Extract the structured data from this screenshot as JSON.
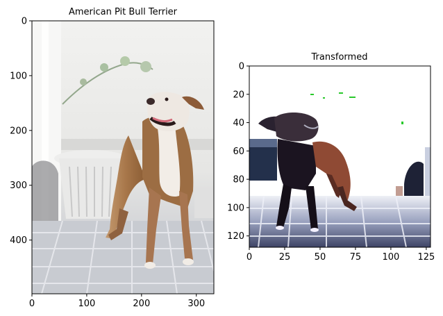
{
  "chart_data": [
    {
      "type": "image",
      "title": "American Pit Bull Terrier",
      "xlim": [
        0,
        332
      ],
      "ylim": [
        498,
        0
      ],
      "xticks": [
        0,
        100,
        200,
        300
      ],
      "yticks": [
        0,
        100,
        200,
        300,
        400
      ],
      "xtick_labels": [
        "0",
        "100",
        "200",
        "300"
      ],
      "ytick_labels": [
        "0",
        "100",
        "200",
        "300",
        "400"
      ],
      "grid": false
    },
    {
      "type": "image",
      "title": "Transformed",
      "xlim": [
        0,
        128
      ],
      "ylim": [
        128,
        0
      ],
      "xticks": [
        0,
        25,
        50,
        75,
        100,
        125
      ],
      "yticks": [
        0,
        20,
        40,
        60,
        80,
        100,
        120
      ],
      "xtick_labels": [
        "0",
        "25",
        "50",
        "75",
        "100",
        "125"
      ],
      "ytick_labels": [
        "0",
        "20",
        "40",
        "60",
        "80",
        "100",
        "120"
      ],
      "grid": false
    }
  ],
  "colors": {
    "left_background": "#e8e8e6",
    "left_floor": "#c9cbcf",
    "dog_coat_tan": "#a8774a",
    "dog_coat_white": "#f1ece6",
    "right_background": "#ffffff",
    "right_floor": "#6f7796",
    "right_dog_dark": "#1b1420",
    "right_dog_rust": "#8f4a34"
  }
}
